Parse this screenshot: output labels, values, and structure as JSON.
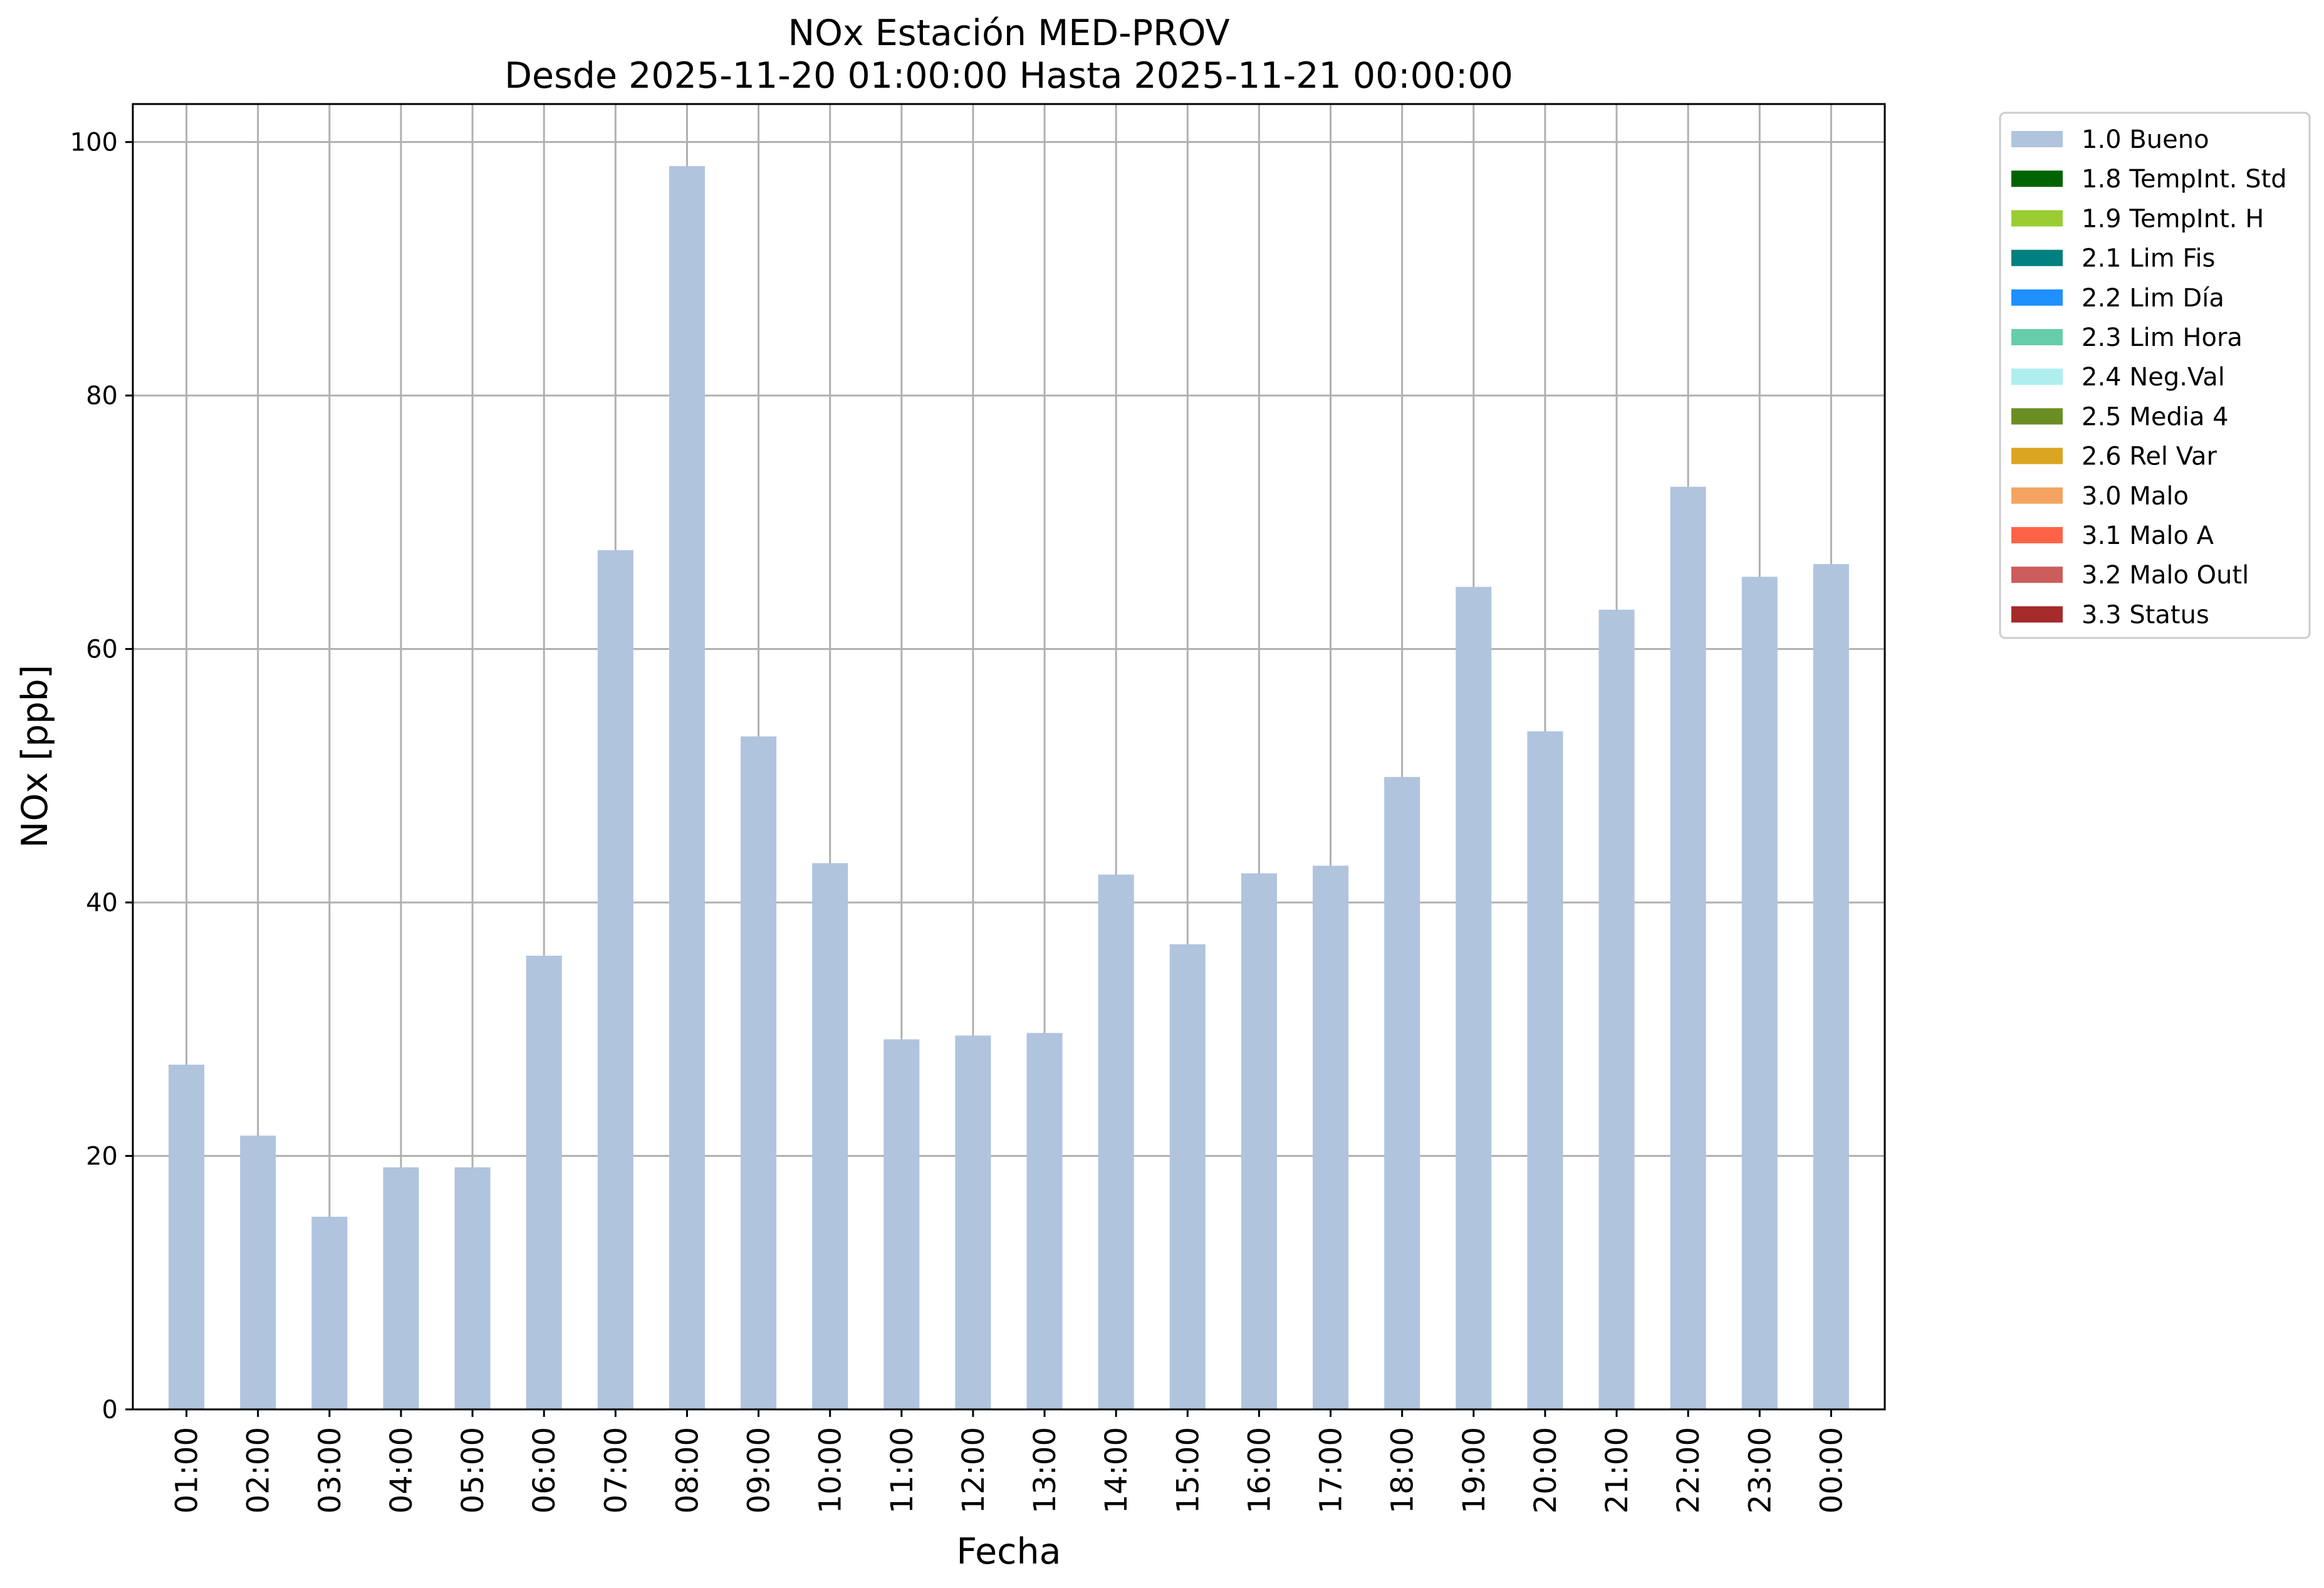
{
  "chart_data": {
    "type": "bar",
    "title": "NOx Estación MED-PROV",
    "subtitle": "Desde 2025-11-20 01:00:00 Hasta 2025-11-21 00:00:00",
    "xlabel": "Fecha",
    "ylabel": "NOx [ppb]",
    "ylim": [
      0,
      103
    ],
    "yticks": [
      0,
      20,
      40,
      60,
      80,
      100
    ],
    "grid": true,
    "legend_position": "outside-top-right",
    "categories": [
      "01:00",
      "02:00",
      "03:00",
      "04:00",
      "05:00",
      "06:00",
      "07:00",
      "08:00",
      "09:00",
      "10:00",
      "11:00",
      "12:00",
      "13:00",
      "14:00",
      "15:00",
      "16:00",
      "17:00",
      "18:00",
      "19:00",
      "20:00",
      "21:00",
      "22:00",
      "23:00",
      "00:00"
    ],
    "series": [
      {
        "name": "1.0 Bueno",
        "color": "#b0c4de",
        "values": [
          27.2,
          21.6,
          15.2,
          19.1,
          19.1,
          35.8,
          67.8,
          98.1,
          53.1,
          43.1,
          29.2,
          29.5,
          29.7,
          42.2,
          36.7,
          42.3,
          42.9,
          49.9,
          64.9,
          53.5,
          63.1,
          72.8,
          65.7,
          66.7
        ]
      }
    ],
    "legend": [
      {
        "label": "1.0 Bueno",
        "color": "#b0c4de"
      },
      {
        "label": "1.8 TempInt. Std",
        "color": "#006400"
      },
      {
        "label": "1.9 TempInt. H",
        "color": "#9acd32"
      },
      {
        "label": "2.1 Lim Fis",
        "color": "#008080"
      },
      {
        "label": "2.2 Lim Día",
        "color": "#1e90ff"
      },
      {
        "label": "2.3 Lim Hora",
        "color": "#66cdaa"
      },
      {
        "label": "2.4 Neg.Val",
        "color": "#afeeee"
      },
      {
        "label": "2.5 Media 4",
        "color": "#6b8e23"
      },
      {
        "label": "2.6 Rel Var",
        "color": "#daa520"
      },
      {
        "label": "3.0 Malo",
        "color": "#f4a460"
      },
      {
        "label": "3.1 Malo A",
        "color": "#ff6347"
      },
      {
        "label": "3.2 Malo Outl",
        "color": "#cd5c5c"
      },
      {
        "label": "3.3 Status",
        "color": "#a52a2a"
      }
    ]
  }
}
